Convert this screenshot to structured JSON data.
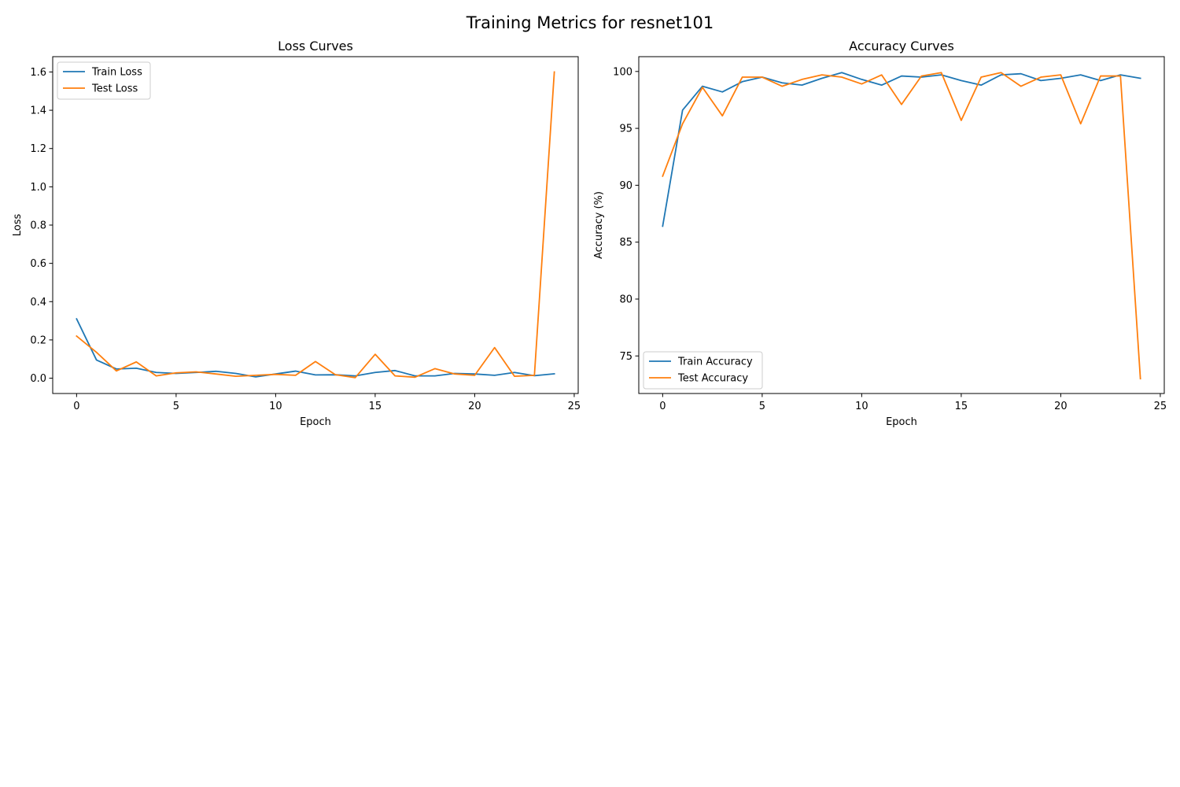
{
  "figure": {
    "suptitle": "Training Metrics for resnet101"
  },
  "colors": {
    "train": "#1f77b4",
    "test": "#ff7f0e"
  },
  "chart_data": [
    {
      "type": "line",
      "title": "Loss Curves",
      "xlabel": "Epoch",
      "ylabel": "Loss",
      "xlim": [
        -1.2,
        25.2
      ],
      "ylim": [
        -0.08,
        1.68
      ],
      "xticks": [
        0,
        5,
        10,
        15,
        20,
        25
      ],
      "yticks": [
        0.0,
        0.2,
        0.4,
        0.6,
        0.8,
        1.0,
        1.2,
        1.4,
        1.6
      ],
      "ytick_decimals": 1,
      "legend": "upper-left",
      "grid": false,
      "x": [
        0,
        1,
        2,
        3,
        4,
        5,
        6,
        7,
        8,
        9,
        10,
        11,
        12,
        13,
        14,
        15,
        16,
        17,
        18,
        19,
        20,
        21,
        22,
        23,
        24
      ],
      "series": [
        {
          "name": "Train Loss",
          "color_key": "train",
          "values": [
            0.31,
            0.095,
            0.048,
            0.052,
            0.03,
            0.025,
            0.03,
            0.036,
            0.025,
            0.007,
            0.022,
            0.037,
            0.017,
            0.018,
            0.012,
            0.03,
            0.04,
            0.012,
            0.012,
            0.025,
            0.022,
            0.015,
            0.03,
            0.013,
            0.023
          ]
        },
        {
          "name": "Test Loss",
          "color_key": "test",
          "values": [
            0.22,
            0.135,
            0.038,
            0.085,
            0.012,
            0.028,
            0.033,
            0.022,
            0.01,
            0.015,
            0.02,
            0.015,
            0.087,
            0.018,
            0.003,
            0.125,
            0.012,
            0.005,
            0.05,
            0.022,
            0.015,
            0.16,
            0.01,
            0.015,
            1.6
          ]
        }
      ]
    },
    {
      "type": "line",
      "title": "Accuracy Curves",
      "xlabel": "Epoch",
      "ylabel": "Accuracy (%)",
      "xlim": [
        -1.2,
        25.2
      ],
      "ylim": [
        71.7,
        101.3
      ],
      "xticks": [
        0,
        5,
        10,
        15,
        20,
        25
      ],
      "yticks": [
        75,
        80,
        85,
        90,
        95,
        100
      ],
      "ytick_decimals": 0,
      "legend": "lower-left",
      "grid": false,
      "x": [
        0,
        1,
        2,
        3,
        4,
        5,
        6,
        7,
        8,
        9,
        10,
        11,
        12,
        13,
        14,
        15,
        16,
        17,
        18,
        19,
        20,
        21,
        22,
        23,
        24
      ],
      "series": [
        {
          "name": "Train Accuracy",
          "color_key": "train",
          "values": [
            86.4,
            96.6,
            98.7,
            98.2,
            99.1,
            99.5,
            99.0,
            98.8,
            99.4,
            99.9,
            99.3,
            98.8,
            99.6,
            99.5,
            99.7,
            99.2,
            98.8,
            99.7,
            99.8,
            99.2,
            99.4,
            99.7,
            99.2,
            99.7,
            99.4
          ]
        },
        {
          "name": "Test Accuracy",
          "color_key": "test",
          "values": [
            90.8,
            95.4,
            98.6,
            96.1,
            99.5,
            99.5,
            98.7,
            99.3,
            99.7,
            99.5,
            98.9,
            99.7,
            97.1,
            99.6,
            99.9,
            95.7,
            99.5,
            99.9,
            98.7,
            99.5,
            99.7,
            95.4,
            99.6,
            99.6,
            73.0
          ]
        }
      ]
    }
  ]
}
